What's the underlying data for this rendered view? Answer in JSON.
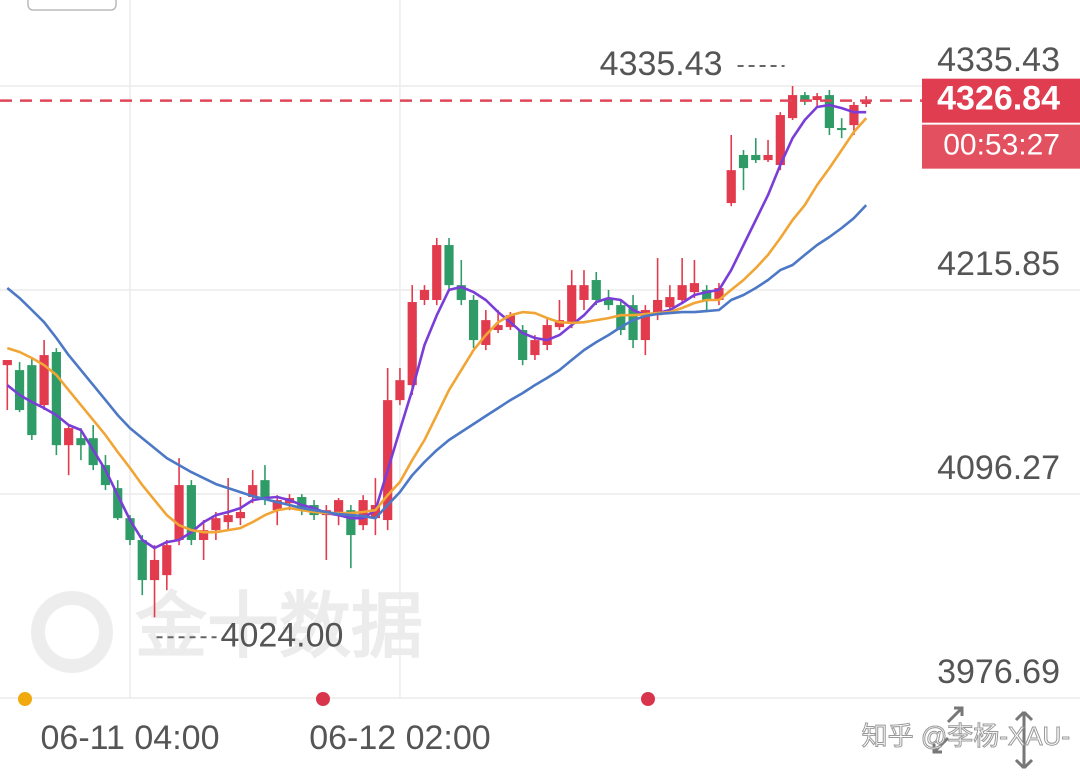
{
  "chart_data": {
    "type": "candlestick",
    "categories": [
      null,
      null,
      null,
      null,
      null,
      null,
      null,
      null,
      null,
      null,
      "06-11 04:00",
      null,
      null,
      null,
      null,
      null,
      null,
      null,
      null,
      null,
      null,
      null,
      null,
      null,
      null,
      null,
      null,
      null,
      null,
      null,
      null,
      null,
      "06-12 02:00",
      null,
      null,
      null,
      null,
      null,
      null,
      null,
      null,
      null,
      null,
      null,
      null,
      null,
      null,
      null,
      null,
      null,
      null,
      null,
      null,
      null,
      null,
      null,
      null,
      null,
      null,
      null,
      null,
      null,
      null,
      null,
      null,
      null,
      null,
      null,
      null,
      null,
      null
    ],
    "open": [
      4171.8,
      4168.9,
      4171.8,
      4148.4,
      4179.5,
      4124.9,
      4129.0,
      4129.0,
      4113.2,
      4099.7,
      4082.1,
      4069.3,
      4045.8,
      4048.7,
      4069.3,
      4101.5,
      4069.3,
      4075.1,
      4079.8,
      4082.1,
      4094.5,
      4104.4,
      4086.8,
      4090.9,
      4094.5,
      4089.8,
      4083.9,
      4083.9,
      4086.8,
      4078.0,
      4082.1,
      4081.0,
      4151.3,
      4160.1,
      4210.0,
      4210.0,
      4242.2,
      4218.7,
      4210.0,
      4183.6,
      4192.4,
      4194.1,
      4192.4,
      4177.7,
      4183.6,
      4194.1,
      4196.5,
      4210.0,
      4221.7,
      4211.1,
      4207.0,
      4207.0,
      4186.5,
      4201.1,
      4205.8,
      4210.0,
      4214.6,
      4215.9,
      4210.0,
      4266.8,
      4295.0,
      4295.0,
      4292.0,
      4289.1,
      4316.6,
      4330.1,
      4327.2,
      4330.1,
      4310.8,
      4312.5,
      4324.9
    ],
    "high": [
      4174.8,
      4173.6,
      4176.0,
      4186.5,
      4181.8,
      4136.7,
      4134.9,
      4136.7,
      4119.1,
      4104.4,
      4083.9,
      4072.2,
      4066.3,
      4069.3,
      4117.3,
      4104.4,
      4081.0,
      4085.7,
      4105.6,
      4094.5,
      4110.3,
      4113.2,
      4095.6,
      4096.2,
      4096.2,
      4092.7,
      4089.8,
      4093.9,
      4089.8,
      4095.6,
      4105.6,
      4170.1,
      4170.1,
      4218.7,
      4218.7,
      4246.3,
      4246.3,
      4233.4,
      4212.9,
      4204.1,
      4204.1,
      4202.9,
      4195.3,
      4189.4,
      4199.4,
      4210.0,
      4227.5,
      4227.5,
      4226.4,
      4215.9,
      4210.0,
      4212.9,
      4207.0,
      4234.6,
      4218.7,
      4234.6,
      4233.4,
      4218.7,
      4219.9,
      4306.7,
      4297.9,
      4304.9,
      4303.8,
      4320.1,
      4335.43,
      4331.9,
      4331.3,
      4333.1,
      4316.6,
      4326.0,
      4329.5
    ],
    "low": [
      4145.5,
      4144.3,
      4127.9,
      4145.5,
      4119.1,
      4107.3,
      4116.1,
      4110.3,
      4098.6,
      4081.0,
      4066.3,
      4037.0,
      4024.0,
      4039.9,
      4066.3,
      4066.3,
      4057.6,
      4069.3,
      4075.1,
      4078.0,
      4090.9,
      4089.8,
      4078.0,
      4086.8,
      4083.9,
      4081.0,
      4057.6,
      4078.0,
      4052.8,
      4075.1,
      4072.2,
      4075.1,
      4148.4,
      4154.3,
      4207.0,
      4207.0,
      4215.9,
      4207.0,
      4181.8,
      4180.6,
      4190.6,
      4192.4,
      4171.8,
      4174.8,
      4180.6,
      4192.4,
      4193.5,
      4204.1,
      4207.0,
      4204.1,
      4189.4,
      4181.8,
      4177.7,
      4198.2,
      4202.9,
      4208.2,
      4211.1,
      4202.9,
      4207.0,
      4265.0,
      4274.4,
      4290.3,
      4290.9,
      4286.1,
      4315.5,
      4324.3,
      4323.1,
      4306.7,
      4304.9,
      4306.7,
      4323.1
    ],
    "close": [
      4174.8,
      4145.5,
      4130.8,
      4177.7,
      4124.9,
      4134.9,
      4124.9,
      4113.2,
      4101.5,
      4082.1,
      4069.3,
      4045.8,
      4057.6,
      4066.3,
      4101.5,
      4069.3,
      4075.1,
      4082.1,
      4083.9,
      4085.7,
      4101.5,
      4092.7,
      4092.7,
      4093.9,
      4086.8,
      4083.9,
      4086.8,
      4092.7,
      4072.2,
      4092.7,
      4089.8,
      4151.3,
      4163.0,
      4208.8,
      4215.9,
      4242.2,
      4218.7,
      4210.0,
      4186.5,
      4198.2,
      4195.3,
      4201.1,
      4174.8,
      4186.5,
      4195.3,
      4198.2,
      4218.7,
      4218.7,
      4210.0,
      4207.0,
      4192.4,
      4186.5,
      4204.1,
      4210.0,
      4211.7,
      4218.7,
      4219.9,
      4210.0,
      4217.0,
      4286.1,
      4287.3,
      4292.0,
      4295.0,
      4318.4,
      4330.1,
      4327.2,
      4329.5,
      4310.8,
      4309.6,
      4324.3,
      4326.84
    ],
    "up_color": "#e23b4e",
    "down_color": "#2f9c68",
    "lines": [
      {
        "color": "#7a3dd8",
        "values": [
          4160.1,
          4154.3,
          4150.2,
          4146.6,
          4142.5,
          4136.7,
          4133.8,
          4122.0,
          4110.3,
          4095.6,
          4081.0,
          4069.3,
          4064.6,
          4068.1,
          4069.3,
          4073.9,
          4079.8,
          4083.9,
          4085.7,
          4088.0,
          4092.7,
          4093.9,
          4094.5,
          4092.7,
          4089.8,
          4088.0,
          4085.1,
          4083.9,
          4082.1,
          4082.1,
          4086.8,
          4110.3,
          4133.8,
          4157.2,
          4183.6,
          4201.1,
          4215.9,
          4217.6,
          4214.6,
          4210.0,
          4202.9,
          4197.0,
          4190.6,
          4187.7,
          4186.5,
          4189.4,
          4195.3,
          4201.1,
          4208.8,
          4211.1,
          4210.0,
          4204.1,
          4201.1,
          4202.3,
          4204.1,
          4208.2,
          4212.9,
          4214.6,
          4215.9,
          4227.5,
          4242.2,
          4256.9,
          4271.5,
          4289.1,
          4304.9,
          4315.5,
          4323.1,
          4324.3,
          4322.5,
          4320.1,
          4320.1
        ]
      },
      {
        "color": "#f0a535",
        "values": [
          4181.8,
          4179.5,
          4176.0,
          4171.8,
          4166.0,
          4157.2,
          4148.4,
          4139.6,
          4130.8,
          4120.9,
          4111.5,
          4101.5,
          4092.7,
          4083.9,
          4078.0,
          4075.1,
          4073.9,
          4073.9,
          4075.1,
          4076.3,
          4079.8,
          4083.9,
          4086.8,
          4088.0,
          4086.8,
          4085.7,
          4085.1,
          4085.1,
          4085.1,
          4085.7,
          4086.8,
          4095.6,
          4103.3,
          4116.1,
          4127.9,
          4142.5,
          4157.2,
          4168.9,
          4180.6,
          4189.4,
          4197.0,
          4201.1,
          4202.9,
          4202.3,
          4199.4,
          4197.0,
          4196.5,
          4197.0,
          4198.2,
          4199.4,
          4201.1,
          4201.1,
          4201.8,
          4202.3,
          4202.9,
          4205.3,
          4208.2,
          4210.0,
          4210.0,
          4215.9,
          4221.7,
          4228.7,
          4236.4,
          4246.3,
          4256.9,
          4265.6,
          4277.4,
          4287.3,
          4297.9,
          4308.5,
          4316.6
        ]
      },
      {
        "color": "#4c78c6",
        "values": [
          4217.0,
          4211.1,
          4204.1,
          4197.0,
          4187.7,
          4177.7,
          4168.9,
          4160.1,
          4151.3,
          4142.5,
          4134.9,
          4129.0,
          4123.2,
          4117.3,
          4113.2,
          4109.1,
          4105.6,
          4102.1,
          4099.7,
          4097.4,
          4095.0,
          4093.3,
          4091.5,
          4089.8,
          4088.0,
          4086.8,
          4085.7,
          4084.5,
          4083.9,
          4083.3,
          4082.1,
          4089.8,
          4097.4,
          4107.3,
          4115.0,
          4122.0,
          4127.9,
          4132.6,
          4137.3,
          4142.0,
          4146.6,
          4151.3,
          4155.4,
          4160.1,
          4164.3,
          4168.9,
          4174.8,
          4180.6,
          4185.3,
          4189.4,
          4194.1,
          4198.2,
          4200.6,
          4201.8,
          4202.3,
          4202.9,
          4202.9,
          4203.5,
          4204.1,
          4210.0,
          4212.9,
          4217.0,
          4221.7,
          4227.5,
          4230.5,
          4236.4,
          4242.2,
          4246.9,
          4252.2,
          4258.0,
          4265.6
        ]
      }
    ],
    "ylim": [
      3976.69,
      4385.84
    ],
    "yticks": [
      3976.69,
      4096.27,
      4215.85,
      4335.43
    ],
    "grid": true,
    "current_price": 4326.84,
    "countdown": "00:53:27",
    "high_annotation": 4335.43,
    "low_annotation": {
      "value": 4024,
      "label": "4024.00"
    },
    "watermark": "金十数据",
    "credit": "知乎 @李杨-XAU-"
  }
}
